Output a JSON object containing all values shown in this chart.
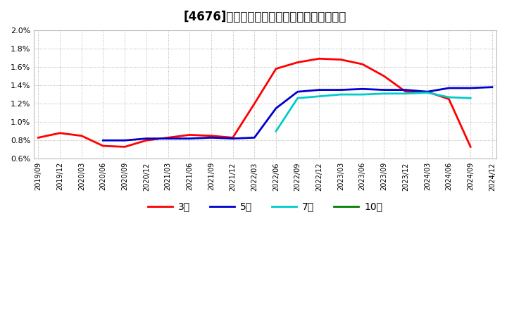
{
  "title": "[4676]　経常利益マージンの標準偏差の推移",
  "ylim": [
    0.006,
    0.02
  ],
  "yticks": [
    0.006,
    0.008,
    0.01,
    0.012,
    0.014,
    0.016,
    0.018,
    0.02
  ],
  "x_labels": [
    "2019/09",
    "2019/12",
    "2020/03",
    "2020/06",
    "2020/09",
    "2020/12",
    "2021/03",
    "2021/06",
    "2021/09",
    "2021/12",
    "2022/03",
    "2022/06",
    "2022/09",
    "2022/12",
    "2023/03",
    "2023/06",
    "2023/09",
    "2023/12",
    "2024/03",
    "2024/06",
    "2024/09",
    "2024/12"
  ],
  "series": {
    "3year": {
      "color": "#ff0000",
      "label": "3年",
      "linewidth": 2.0,
      "data": [
        [
          "2019/09",
          0.0083
        ],
        [
          "2019/12",
          0.0088
        ],
        [
          "2020/03",
          0.0085
        ],
        [
          "2020/06",
          0.0074
        ],
        [
          "2020/09",
          0.0073
        ],
        [
          "2020/12",
          0.008
        ],
        [
          "2021/03",
          0.0083
        ],
        [
          "2021/06",
          0.0086
        ],
        [
          "2021/09",
          0.0085
        ],
        [
          "2021/12",
          0.0083
        ],
        [
          "2022/03",
          0.012
        ],
        [
          "2022/06",
          0.0158
        ],
        [
          "2022/09",
          0.0165
        ],
        [
          "2022/12",
          0.0169
        ],
        [
          "2023/03",
          0.0168
        ],
        [
          "2023/06",
          0.0163
        ],
        [
          "2023/09",
          0.015
        ],
        [
          "2023/12",
          0.0133
        ],
        [
          "2024/03",
          0.0133
        ],
        [
          "2024/06",
          0.0125
        ],
        [
          "2024/09",
          0.0073
        ],
        [
          "2024/12",
          null
        ]
      ]
    },
    "5year": {
      "color": "#0000cd",
      "label": "5年",
      "linewidth": 2.0,
      "data": [
        [
          "2019/09",
          null
        ],
        [
          "2019/12",
          null
        ],
        [
          "2020/03",
          null
        ],
        [
          "2020/06",
          0.008
        ],
        [
          "2020/09",
          0.008
        ],
        [
          "2020/12",
          0.0082
        ],
        [
          "2021/03",
          0.0082
        ],
        [
          "2021/06",
          0.0082
        ],
        [
          "2021/09",
          0.0083
        ],
        [
          "2021/12",
          0.0082
        ],
        [
          "2022/03",
          0.0083
        ],
        [
          "2022/06",
          0.0115
        ],
        [
          "2022/09",
          0.0133
        ],
        [
          "2022/12",
          0.0135
        ],
        [
          "2023/03",
          0.0135
        ],
        [
          "2023/06",
          0.0136
        ],
        [
          "2023/09",
          0.0135
        ],
        [
          "2023/12",
          0.0135
        ],
        [
          "2024/03",
          0.0133
        ],
        [
          "2024/06",
          0.0137
        ],
        [
          "2024/09",
          0.0137
        ],
        [
          "2024/12",
          0.0138
        ]
      ]
    },
    "7year": {
      "color": "#00cccc",
      "label": "7年",
      "linewidth": 2.0,
      "data": [
        [
          "2019/09",
          null
        ],
        [
          "2019/12",
          null
        ],
        [
          "2020/03",
          null
        ],
        [
          "2020/06",
          null
        ],
        [
          "2020/09",
          null
        ],
        [
          "2020/12",
          null
        ],
        [
          "2021/03",
          null
        ],
        [
          "2021/06",
          null
        ],
        [
          "2021/09",
          null
        ],
        [
          "2021/12",
          null
        ],
        [
          "2022/03",
          null
        ],
        [
          "2022/06",
          0.009
        ],
        [
          "2022/09",
          0.0126
        ],
        [
          "2022/12",
          0.0128
        ],
        [
          "2023/03",
          0.013
        ],
        [
          "2023/06",
          0.013
        ],
        [
          "2023/09",
          0.0131
        ],
        [
          "2023/12",
          0.0131
        ],
        [
          "2024/03",
          0.0132
        ],
        [
          "2024/06",
          0.0127
        ],
        [
          "2024/09",
          0.0126
        ],
        [
          "2024/12",
          null
        ]
      ]
    },
    "10year": {
      "color": "#008000",
      "label": "10年",
      "linewidth": 2.0,
      "data": [
        [
          "2019/09",
          null
        ],
        [
          "2019/12",
          null
        ],
        [
          "2020/03",
          null
        ],
        [
          "2020/06",
          null
        ],
        [
          "2020/09",
          null
        ],
        [
          "2020/12",
          null
        ],
        [
          "2021/03",
          null
        ],
        [
          "2021/06",
          null
        ],
        [
          "2021/09",
          null
        ],
        [
          "2021/12",
          null
        ],
        [
          "2022/03",
          null
        ],
        [
          "2022/06",
          null
        ],
        [
          "2022/09",
          null
        ],
        [
          "2022/12",
          null
        ],
        [
          "2023/03",
          null
        ],
        [
          "2023/06",
          null
        ],
        [
          "2023/09",
          null
        ],
        [
          "2023/12",
          null
        ],
        [
          "2024/03",
          null
        ],
        [
          "2024/06",
          null
        ],
        [
          "2024/09",
          null
        ],
        [
          "2024/12",
          null
        ]
      ]
    }
  },
  "background_color": "#ffffff",
  "plot_bg_color": "#ffffff",
  "grid_color": "#999999",
  "title_fontsize": 12,
  "legend_fontsize": 10
}
